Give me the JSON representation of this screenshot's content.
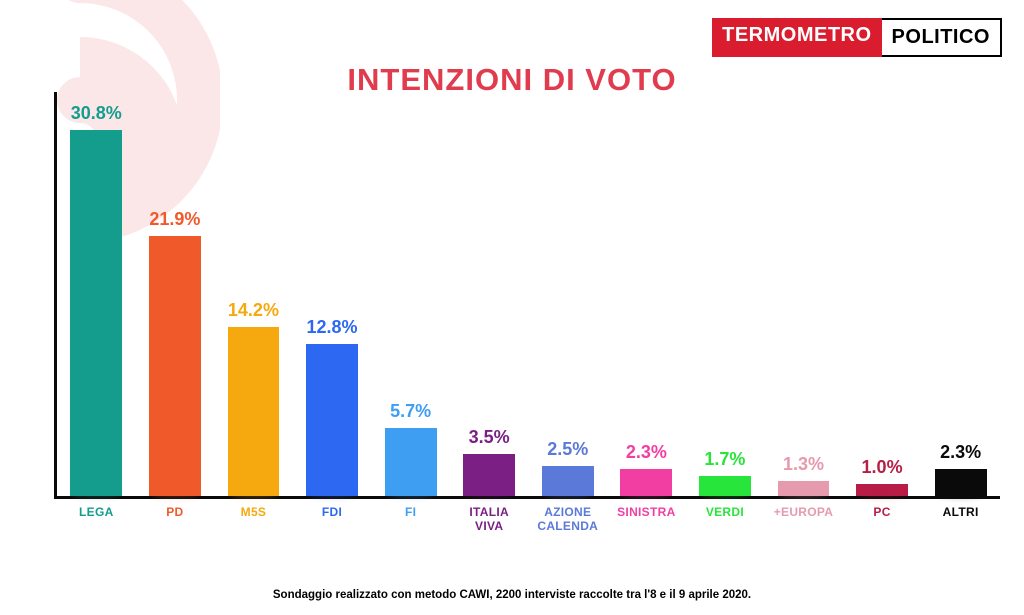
{
  "logo": {
    "left": "TERMOMETRO",
    "right": "POLITICO",
    "left_bg": "#d91d2e",
    "left_fg": "#ffffff",
    "right_fg": "#000000"
  },
  "chart": {
    "type": "bar",
    "title": "INTENZIONI DI VOTO",
    "title_color": "#e13b4e",
    "title_fontsize": 31,
    "ymax": 34,
    "bar_width_pct": 66,
    "value_fontsize": 18,
    "label_fontsize": 12,
    "axis_color": "#0a0a0a",
    "background_color": "#ffffff",
    "swirl_color": "#e13b4e",
    "series": [
      {
        "label": "LEGA",
        "value": 30.8,
        "color": "#149d8c"
      },
      {
        "label": "PD",
        "value": 21.9,
        "color": "#f05a2b"
      },
      {
        "label": "M5S",
        "value": 14.2,
        "color": "#f6a90e"
      },
      {
        "label": "FDI",
        "value": 12.8,
        "color": "#2d68f2"
      },
      {
        "label": "FI",
        "value": 5.7,
        "color": "#3e9ef1"
      },
      {
        "label": "ITALIA\nVIVA",
        "value": 3.5,
        "color": "#7b1f85"
      },
      {
        "label": "AZIONE\nCALENDA",
        "value": 2.5,
        "color": "#5b79d8"
      },
      {
        "label": "SINISTRA",
        "value": 2.3,
        "color": "#f23ea2"
      },
      {
        "label": "VERDI",
        "value": 1.7,
        "color": "#28e53b"
      },
      {
        "label": "+EUROPA",
        "value": 1.3,
        "color": "#e59aae"
      },
      {
        "label": "PC",
        "value": 1.0,
        "color": "#b71d46"
      },
      {
        "label": "ALTRI",
        "value": 2.3,
        "color": "#0a0a0a"
      }
    ]
  },
  "footer": "Sondaggio realizzato con metodo CAWI, 2200 interviste raccolte tra l'8 e il 9 aprile 2020."
}
